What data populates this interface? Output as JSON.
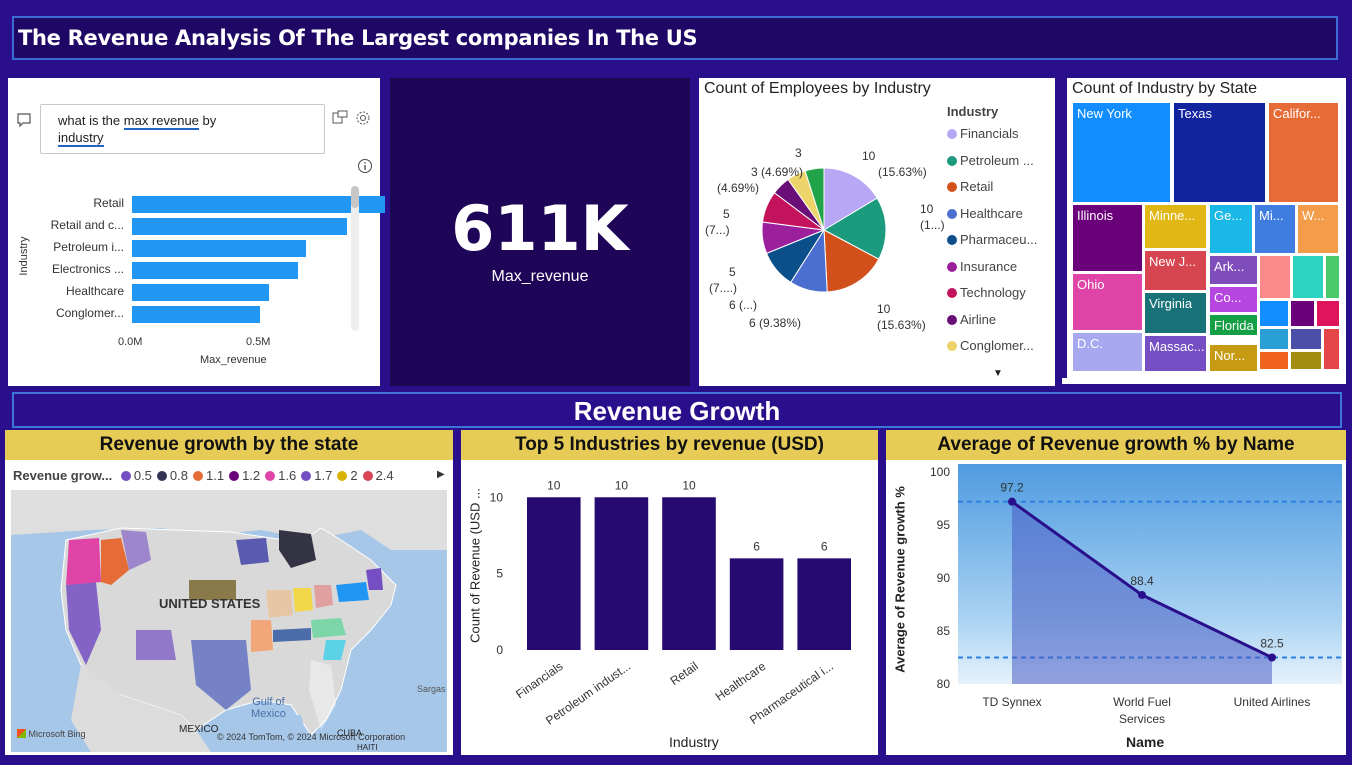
{
  "header": {
    "title": "The Revenue Analysis Of The Largest companies In The US"
  },
  "qa": {
    "question_part1": "what is the ",
    "question_hl": "max revenue",
    "question_part2": " by",
    "question_line2": "industry",
    "y_axis_label": "Industry",
    "x_axis_label": "Max_revenue",
    "x_ticks": [
      "0.0M",
      "0.5M"
    ],
    "bars": [
      {
        "label": "Retail",
        "value": 0.611
      },
      {
        "label": "Retail and c...",
        "value": 0.52
      },
      {
        "label": "Petroleum i...",
        "value": 0.42
      },
      {
        "label": "Electronics ...",
        "value": 0.4
      },
      {
        "label": "Healthcare",
        "value": 0.33
      },
      {
        "label": "Conglomer...",
        "value": 0.31
      }
    ],
    "bar_color": "#2196f3"
  },
  "kpi": {
    "value": "611K",
    "label": "Max_revenue"
  },
  "pie": {
    "title": "Count of Employees by Industry",
    "legend_title": "Industry",
    "legend": [
      {
        "name": "Financials",
        "color": "#b7a7f5"
      },
      {
        "name": "Petroleum ...",
        "color": "#1c9a7e"
      },
      {
        "name": "Retail",
        "color": "#d1501b"
      },
      {
        "name": "Healthcare",
        "color": "#4b6fd1"
      },
      {
        "name": "Pharmaceu...",
        "color": "#0b4f8a"
      },
      {
        "name": "Insurance",
        "color": "#9c1f9c"
      },
      {
        "name": "Technology",
        "color": "#c2135c"
      },
      {
        "name": "Airline",
        "color": "#6b0f78"
      },
      {
        "name": "Conglomer...",
        "color": "#ecd36a"
      }
    ],
    "labels": {
      "l1a": "10",
      "l1b": "(15.63%)",
      "l2a": "10",
      "l2b": "(1...)",
      "l3a": "10",
      "l3b": "(15.63%)",
      "l4": "6 (9.38%)",
      "l5": "6 (...)",
      "l6a": "5",
      "l6b": "(7....)",
      "l7a": "5",
      "l7b": "(7...)",
      "l8a": "3 (4.69%)",
      "l8b": "(4.69%)",
      "l9": "3"
    }
  },
  "treemap": {
    "title": "Count of Industry by State",
    "cells": [
      {
        "label": "New York",
        "color": "#118dff"
      },
      {
        "label": "Texas",
        "color": "#12239e"
      },
      {
        "label": "Califor...",
        "color": "#e66c37"
      },
      {
        "label": "Illinois",
        "color": "#6b007b"
      },
      {
        "label": "Minne...",
        "color": "#e0b714"
      },
      {
        "label": "Ge...",
        "color": "#1ab8e6"
      },
      {
        "label": "Mi...",
        "color": "#3f7de0"
      },
      {
        "label": "W...",
        "color": "#f39c4a"
      },
      {
        "label": "Ohio",
        "color": "#e044a7"
      },
      {
        "label": "New J...",
        "color": "#d64550"
      },
      {
        "label": "Ark...",
        "color": "#7f4dbb"
      },
      {
        "label": "Virginia",
        "color": "#197278"
      },
      {
        "label": "Co...",
        "color": "#b745e0"
      },
      {
        "label": "D.C.",
        "color": "#a8a8f0"
      },
      {
        "label": "Massac...",
        "color": "#744ec2"
      },
      {
        "label": "Florida",
        "color": "#15a045"
      },
      {
        "label": "Nor...",
        "color": "#c79a13"
      }
    ]
  },
  "section": {
    "title": "Revenue Growth"
  },
  "map": {
    "title": "Revenue growth by the state",
    "legend_title": "Revenue grow...",
    "legend": [
      {
        "label": "0.5",
        "color": "#744ec2"
      },
      {
        "label": "0.8",
        "color": "#333355"
      },
      {
        "label": "1.1",
        "color": "#e66c37"
      },
      {
        "label": "1.2",
        "color": "#6b007b"
      },
      {
        "label": "1.6",
        "color": "#e044a7"
      },
      {
        "label": "1.7",
        "color": "#744ec2"
      },
      {
        "label": "2",
        "color": "#d9b300"
      },
      {
        "label": "2.4",
        "color": "#d64550"
      }
    ],
    "country_label": "UNITED STATES",
    "gulf_label_1": "Gulf of",
    "gulf_label_2": "Mexico",
    "mexico_label": "MEXICO",
    "cuba_label": "CUBA",
    "haiti_label": "HAITI",
    "sargasso_label": "Sargas",
    "bing_label": "Microsoft Bing",
    "copyright": "© 2024 TomTom, © 2024 Microsoft Corporation"
  },
  "bar_chart": {
    "title": "Top 5 Industries by revenue (USD)",
    "y_label": "Count of Revenue (USD ...",
    "x_label": "Industry",
    "bar_color": "#260a72",
    "chart_data": {
      "type": "bar",
      "categories": [
        "Financials",
        "Petroleum indust...",
        "Retail",
        "Healthcare",
        "Pharmaceutical i..."
      ],
      "values": [
        10,
        10,
        10,
        6,
        6
      ],
      "ylim": [
        0,
        11
      ],
      "yticks": [
        0,
        5,
        10
      ]
    }
  },
  "line_chart": {
    "title": "Average of Revenue growth % by Name",
    "y_label": "Average of Revenue growth %",
    "x_label": "Name",
    "line_color": "#2a0f8c",
    "chart_data": {
      "type": "area",
      "categories": [
        "TD Synnex",
        "World Fuel Services",
        "United Airlines"
      ],
      "cat_line1": [
        "TD Synnex",
        "World Fuel",
        "United Airlines"
      ],
      "cat_line2": [
        "",
        "Services",
        ""
      ],
      "values": [
        97.2,
        88.4,
        82.5
      ],
      "value_labels": [
        "97.2",
        "88.4",
        "82.5"
      ],
      "ylim": [
        80,
        100
      ],
      "yticks": [
        80,
        85,
        90,
        95,
        100
      ],
      "ref_lines": [
        97.2,
        82.5
      ]
    }
  }
}
